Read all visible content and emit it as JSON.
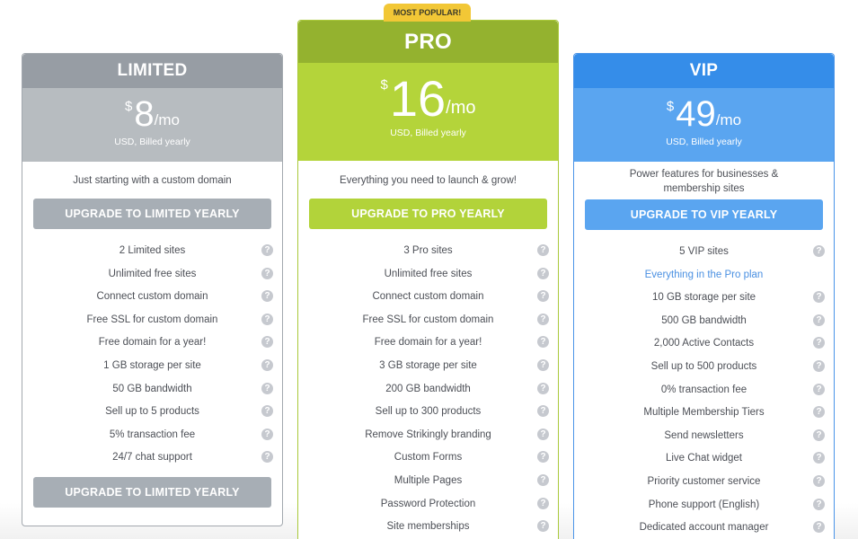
{
  "colors": {
    "limited_header": "#979da4",
    "limited_price": "#b7bcc0",
    "limited_button": "#a7aeb5",
    "pro_header": "#94b22f",
    "pro_price": "#b4d43a",
    "pro_button": "#b2d33a",
    "vip_header": "#358de9",
    "vip_price": "#5aa5f0",
    "vip_button": "#5aa5f0",
    "badge": "#f2c736",
    "highlight_text": "#4a90e2"
  },
  "plans": {
    "limited": {
      "name": "LIMITED",
      "currency": "$",
      "amount": "8",
      "per": "/mo",
      "billing": "USD, Billed yearly",
      "tagline": "Just starting with a custom domain",
      "button_label": "UPGRADE TO LIMITED YEARLY",
      "features": [
        {
          "label": "2 Limited sites",
          "help": true
        },
        {
          "label": "Unlimited free sites",
          "help": true
        },
        {
          "label": "Connect custom domain",
          "help": true
        },
        {
          "label": "Free SSL for custom domain",
          "help": true
        },
        {
          "label": "Free domain for a year!",
          "help": true
        },
        {
          "label": "1 GB storage per site",
          "help": true
        },
        {
          "label": "50 GB bandwidth",
          "help": true
        },
        {
          "label": "Sell up to 5 products",
          "help": true
        },
        {
          "label": "5% transaction fee",
          "help": true
        },
        {
          "label": "24/7 chat support",
          "help": true
        }
      ],
      "bottom_button_label": "UPGRADE TO LIMITED YEARLY"
    },
    "pro": {
      "badge": "MOST POPULAR!",
      "name": "PRO",
      "currency": "$",
      "amount": "16",
      "per": "/mo",
      "billing": "USD, Billed yearly",
      "tagline": "Everything you need to launch & grow!",
      "button_label": "UPGRADE TO PRO YEARLY",
      "features": [
        {
          "label": "3 Pro sites",
          "help": true
        },
        {
          "label": "Unlimited free sites",
          "help": true
        },
        {
          "label": "Connect custom domain",
          "help": true
        },
        {
          "label": "Free SSL for custom domain",
          "help": true
        },
        {
          "label": "Free domain for a year!",
          "help": true
        },
        {
          "label": "3 GB storage per site",
          "help": true
        },
        {
          "label": "200 GB bandwidth",
          "help": true
        },
        {
          "label": "Sell up to 300 products",
          "help": true
        },
        {
          "label": "Remove Strikingly branding",
          "help": true
        },
        {
          "label": "Custom Forms",
          "help": true
        },
        {
          "label": "Multiple Pages",
          "help": true
        },
        {
          "label": "Password Protection",
          "help": true
        },
        {
          "label": "Site memberships",
          "help": true
        }
      ]
    },
    "vip": {
      "name": "VIP",
      "currency": "$",
      "amount": "49",
      "per": "/mo",
      "billing": "USD, Billed yearly",
      "tagline": "Power features for businesses & membership sites",
      "button_label": "UPGRADE TO VIP YEARLY",
      "features": [
        {
          "label": "5 VIP sites",
          "help": true
        },
        {
          "label": "Everything in the Pro plan",
          "help": false,
          "highlight": true
        },
        {
          "label": "10 GB storage per site",
          "help": true
        },
        {
          "label": "500 GB bandwidth",
          "help": true
        },
        {
          "label": "2,000 Active Contacts",
          "help": true
        },
        {
          "label": "Sell up to 500 products",
          "help": true
        },
        {
          "label": "0% transaction fee",
          "help": true
        },
        {
          "label": "Multiple Membership Tiers",
          "help": true
        },
        {
          "label": "Send newsletters",
          "help": true
        },
        {
          "label": "Live Chat widget",
          "help": true
        },
        {
          "label": "Priority customer service",
          "help": true
        },
        {
          "label": "Phone support (English)",
          "help": true
        },
        {
          "label": "Dedicated account manager",
          "help": true
        }
      ]
    }
  },
  "icons": {
    "help": "?"
  }
}
